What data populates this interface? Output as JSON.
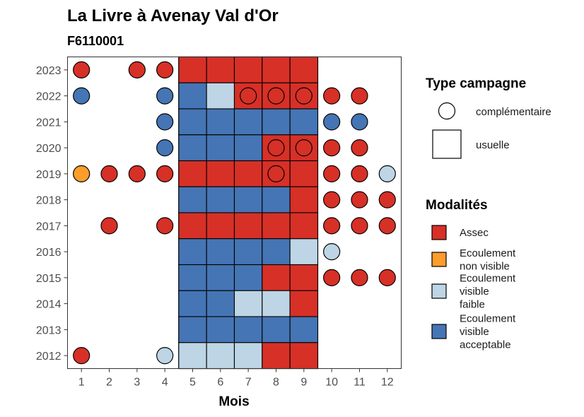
{
  "chart_data": {
    "type": "heatmap",
    "title": "La Livre à Avenay Val d'Or",
    "subtitle": "F6110001",
    "xlabel": "Mois",
    "ylabel": "",
    "x_categories": [
      "1",
      "2",
      "3",
      "4",
      "5",
      "6",
      "7",
      "8",
      "9",
      "10",
      "11",
      "12"
    ],
    "y_categories": [
      "2012",
      "2013",
      "2014",
      "2015",
      "2016",
      "2017",
      "2018",
      "2019",
      "2020",
      "2021",
      "2022",
      "2023"
    ],
    "campaign_legend": {
      "title": "Type campagne",
      "entries": [
        {
          "key": "complementaire",
          "label": "complémentaire",
          "shape": "circle"
        },
        {
          "key": "usuelle",
          "label": "usuelle",
          "shape": "square"
        }
      ]
    },
    "modality_legend": {
      "title": "Modalités",
      "entries": [
        {
          "key": "assec",
          "lines": [
            "Assec"
          ],
          "color": "#D73027"
        },
        {
          "key": "ecoul_non_visible",
          "lines": [
            "Ecoulement",
            "non visible"
          ],
          "color": "#FC9D2C"
        },
        {
          "key": "ecoul_faible",
          "lines": [
            "Ecoulement",
            "visible",
            "faible"
          ],
          "color": "#BDD5E5"
        },
        {
          "key": "ecoul_acceptable",
          "lines": [
            "Ecoulement",
            "visible",
            "acceptable"
          ],
          "color": "#4575B4"
        }
      ]
    },
    "usual_range": {
      "from_month": 5,
      "to_month": 9
    },
    "observations": [
      {
        "year": "2023",
        "month": 1,
        "campaign": "complementaire",
        "modality": "assec"
      },
      {
        "year": "2023",
        "month": 3,
        "campaign": "complementaire",
        "modality": "assec"
      },
      {
        "year": "2023",
        "month": 4,
        "campaign": "complementaire",
        "modality": "assec"
      },
      {
        "year": "2023",
        "month": 5,
        "campaign": "usuelle",
        "modality": "assec"
      },
      {
        "year": "2023",
        "month": 6,
        "campaign": "usuelle",
        "modality": "assec"
      },
      {
        "year": "2023",
        "month": 7,
        "campaign": "usuelle",
        "modality": "assec"
      },
      {
        "year": "2023",
        "month": 8,
        "campaign": "usuelle",
        "modality": "assec"
      },
      {
        "year": "2023",
        "month": 9,
        "campaign": "usuelle",
        "modality": "assec"
      },
      {
        "year": "2022",
        "month": 1,
        "campaign": "complementaire",
        "modality": "ecoul_acceptable"
      },
      {
        "year": "2022",
        "month": 4,
        "campaign": "complementaire",
        "modality": "ecoul_acceptable"
      },
      {
        "year": "2022",
        "month": 5,
        "campaign": "usuelle",
        "modality": "ecoul_acceptable"
      },
      {
        "year": "2022",
        "month": 6,
        "campaign": "usuelle",
        "modality": "ecoul_faible"
      },
      {
        "year": "2022",
        "month": 7,
        "campaign": "usuelle",
        "modality": "assec"
      },
      {
        "year": "2022",
        "month": 8,
        "campaign": "usuelle",
        "modality": "assec"
      },
      {
        "year": "2022",
        "month": 9,
        "campaign": "usuelle",
        "modality": "assec"
      },
      {
        "year": "2022",
        "month": 7,
        "campaign": "complementaire",
        "modality": "assec"
      },
      {
        "year": "2022",
        "month": 8,
        "campaign": "complementaire",
        "modality": "assec"
      },
      {
        "year": "2022",
        "month": 9,
        "campaign": "complementaire",
        "modality": "assec"
      },
      {
        "year": "2022",
        "month": 10,
        "campaign": "complementaire",
        "modality": "assec"
      },
      {
        "year": "2022",
        "month": 11,
        "campaign": "complementaire",
        "modality": "assec"
      },
      {
        "year": "2021",
        "month": 4,
        "campaign": "complementaire",
        "modality": "ecoul_acceptable"
      },
      {
        "year": "2021",
        "month": 5,
        "campaign": "usuelle",
        "modality": "ecoul_acceptable"
      },
      {
        "year": "2021",
        "month": 6,
        "campaign": "usuelle",
        "modality": "ecoul_acceptable"
      },
      {
        "year": "2021",
        "month": 7,
        "campaign": "usuelle",
        "modality": "ecoul_acceptable"
      },
      {
        "year": "2021",
        "month": 8,
        "campaign": "usuelle",
        "modality": "ecoul_acceptable"
      },
      {
        "year": "2021",
        "month": 9,
        "campaign": "usuelle",
        "modality": "ecoul_acceptable"
      },
      {
        "year": "2021",
        "month": 10,
        "campaign": "complementaire",
        "modality": "ecoul_acceptable"
      },
      {
        "year": "2021",
        "month": 11,
        "campaign": "complementaire",
        "modality": "ecoul_acceptable"
      },
      {
        "year": "2020",
        "month": 4,
        "campaign": "complementaire",
        "modality": "ecoul_acceptable"
      },
      {
        "year": "2020",
        "month": 5,
        "campaign": "usuelle",
        "modality": "ecoul_acceptable"
      },
      {
        "year": "2020",
        "month": 6,
        "campaign": "usuelle",
        "modality": "ecoul_acceptable"
      },
      {
        "year": "2020",
        "month": 7,
        "campaign": "usuelle",
        "modality": "ecoul_acceptable"
      },
      {
        "year": "2020",
        "month": 8,
        "campaign": "usuelle",
        "modality": "assec"
      },
      {
        "year": "2020",
        "month": 9,
        "campaign": "usuelle",
        "modality": "assec"
      },
      {
        "year": "2020",
        "month": 8,
        "campaign": "complementaire",
        "modality": "assec"
      },
      {
        "year": "2020",
        "month": 9,
        "campaign": "complementaire",
        "modality": "assec"
      },
      {
        "year": "2020",
        "month": 10,
        "campaign": "complementaire",
        "modality": "assec"
      },
      {
        "year": "2020",
        "month": 11,
        "campaign": "complementaire",
        "modality": "assec"
      },
      {
        "year": "2019",
        "month": 1,
        "campaign": "complementaire",
        "modality": "ecoul_non_visible"
      },
      {
        "year": "2019",
        "month": 2,
        "campaign": "complementaire",
        "modality": "assec"
      },
      {
        "year": "2019",
        "month": 3,
        "campaign": "complementaire",
        "modality": "assec"
      },
      {
        "year": "2019",
        "month": 4,
        "campaign": "complementaire",
        "modality": "assec"
      },
      {
        "year": "2019",
        "month": 5,
        "campaign": "usuelle",
        "modality": "assec"
      },
      {
        "year": "2019",
        "month": 6,
        "campaign": "usuelle",
        "modality": "assec"
      },
      {
        "year": "2019",
        "month": 7,
        "campaign": "usuelle",
        "modality": "assec"
      },
      {
        "year": "2019",
        "month": 8,
        "campaign": "usuelle",
        "modality": "assec"
      },
      {
        "year": "2019",
        "month": 9,
        "campaign": "usuelle",
        "modality": "assec"
      },
      {
        "year": "2019",
        "month": 8,
        "campaign": "complementaire",
        "modality": "assec"
      },
      {
        "year": "2019",
        "month": 10,
        "campaign": "complementaire",
        "modality": "assec"
      },
      {
        "year": "2019",
        "month": 11,
        "campaign": "complementaire",
        "modality": "assec"
      },
      {
        "year": "2019",
        "month": 12,
        "campaign": "complementaire",
        "modality": "ecoul_faible"
      },
      {
        "year": "2018",
        "month": 5,
        "campaign": "usuelle",
        "modality": "ecoul_acceptable"
      },
      {
        "year": "2018",
        "month": 6,
        "campaign": "usuelle",
        "modality": "ecoul_acceptable"
      },
      {
        "year": "2018",
        "month": 7,
        "campaign": "usuelle",
        "modality": "ecoul_acceptable"
      },
      {
        "year": "2018",
        "month": 8,
        "campaign": "usuelle",
        "modality": "ecoul_acceptable"
      },
      {
        "year": "2018",
        "month": 9,
        "campaign": "usuelle",
        "modality": "assec"
      },
      {
        "year": "2018",
        "month": 10,
        "campaign": "complementaire",
        "modality": "assec"
      },
      {
        "year": "2018",
        "month": 11,
        "campaign": "complementaire",
        "modality": "assec"
      },
      {
        "year": "2018",
        "month": 12,
        "campaign": "complementaire",
        "modality": "assec"
      },
      {
        "year": "2017",
        "month": 2,
        "campaign": "complementaire",
        "modality": "assec"
      },
      {
        "year": "2017",
        "month": 4,
        "campaign": "complementaire",
        "modality": "assec"
      },
      {
        "year": "2017",
        "month": 5,
        "campaign": "usuelle",
        "modality": "assec"
      },
      {
        "year": "2017",
        "month": 6,
        "campaign": "usuelle",
        "modality": "assec"
      },
      {
        "year": "2017",
        "month": 7,
        "campaign": "usuelle",
        "modality": "assec"
      },
      {
        "year": "2017",
        "month": 8,
        "campaign": "usuelle",
        "modality": "assec"
      },
      {
        "year": "2017",
        "month": 9,
        "campaign": "usuelle",
        "modality": "assec"
      },
      {
        "year": "2017",
        "month": 10,
        "campaign": "complementaire",
        "modality": "assec"
      },
      {
        "year": "2017",
        "month": 11,
        "campaign": "complementaire",
        "modality": "assec"
      },
      {
        "year": "2017",
        "month": 12,
        "campaign": "complementaire",
        "modality": "assec"
      },
      {
        "year": "2016",
        "month": 5,
        "campaign": "usuelle",
        "modality": "ecoul_acceptable"
      },
      {
        "year": "2016",
        "month": 6,
        "campaign": "usuelle",
        "modality": "ecoul_acceptable"
      },
      {
        "year": "2016",
        "month": 7,
        "campaign": "usuelle",
        "modality": "ecoul_acceptable"
      },
      {
        "year": "2016",
        "month": 8,
        "campaign": "usuelle",
        "modality": "ecoul_acceptable"
      },
      {
        "year": "2016",
        "month": 9,
        "campaign": "usuelle",
        "modality": "ecoul_faible"
      },
      {
        "year": "2016",
        "month": 10,
        "campaign": "complementaire",
        "modality": "ecoul_faible"
      },
      {
        "year": "2015",
        "month": 5,
        "campaign": "usuelle",
        "modality": "ecoul_acceptable"
      },
      {
        "year": "2015",
        "month": 6,
        "campaign": "usuelle",
        "modality": "ecoul_acceptable"
      },
      {
        "year": "2015",
        "month": 7,
        "campaign": "usuelle",
        "modality": "ecoul_acceptable"
      },
      {
        "year": "2015",
        "month": 8,
        "campaign": "usuelle",
        "modality": "assec"
      },
      {
        "year": "2015",
        "month": 9,
        "campaign": "usuelle",
        "modality": "assec"
      },
      {
        "year": "2015",
        "month": 10,
        "campaign": "complementaire",
        "modality": "assec"
      },
      {
        "year": "2015",
        "month": 11,
        "campaign": "complementaire",
        "modality": "assec"
      },
      {
        "year": "2015",
        "month": 12,
        "campaign": "complementaire",
        "modality": "assec"
      },
      {
        "year": "2014",
        "month": 5,
        "campaign": "usuelle",
        "modality": "ecoul_acceptable"
      },
      {
        "year": "2014",
        "month": 6,
        "campaign": "usuelle",
        "modality": "ecoul_acceptable"
      },
      {
        "year": "2014",
        "month": 7,
        "campaign": "usuelle",
        "modality": "ecoul_faible"
      },
      {
        "year": "2014",
        "month": 8,
        "campaign": "usuelle",
        "modality": "ecoul_faible"
      },
      {
        "year": "2014",
        "month": 9,
        "campaign": "usuelle",
        "modality": "assec"
      },
      {
        "year": "2013",
        "month": 5,
        "campaign": "usuelle",
        "modality": "ecoul_acceptable"
      },
      {
        "year": "2013",
        "month": 6,
        "campaign": "usuelle",
        "modality": "ecoul_acceptable"
      },
      {
        "year": "2013",
        "month": 7,
        "campaign": "usuelle",
        "modality": "ecoul_acceptable"
      },
      {
        "year": "2013",
        "month": 8,
        "campaign": "usuelle",
        "modality": "ecoul_acceptable"
      },
      {
        "year": "2013",
        "month": 9,
        "campaign": "usuelle",
        "modality": "ecoul_acceptable"
      },
      {
        "year": "2012",
        "month": 1,
        "campaign": "complementaire",
        "modality": "assec"
      },
      {
        "year": "2012",
        "month": 4,
        "campaign": "complementaire",
        "modality": "ecoul_faible"
      },
      {
        "year": "2012",
        "month": 5,
        "campaign": "usuelle",
        "modality": "ecoul_faible"
      },
      {
        "year": "2012",
        "month": 6,
        "campaign": "usuelle",
        "modality": "ecoul_faible"
      },
      {
        "year": "2012",
        "month": 7,
        "campaign": "usuelle",
        "modality": "ecoul_faible"
      },
      {
        "year": "2012",
        "month": 8,
        "campaign": "usuelle",
        "modality": "assec"
      },
      {
        "year": "2012",
        "month": 9,
        "campaign": "usuelle",
        "modality": "assec"
      }
    ]
  }
}
